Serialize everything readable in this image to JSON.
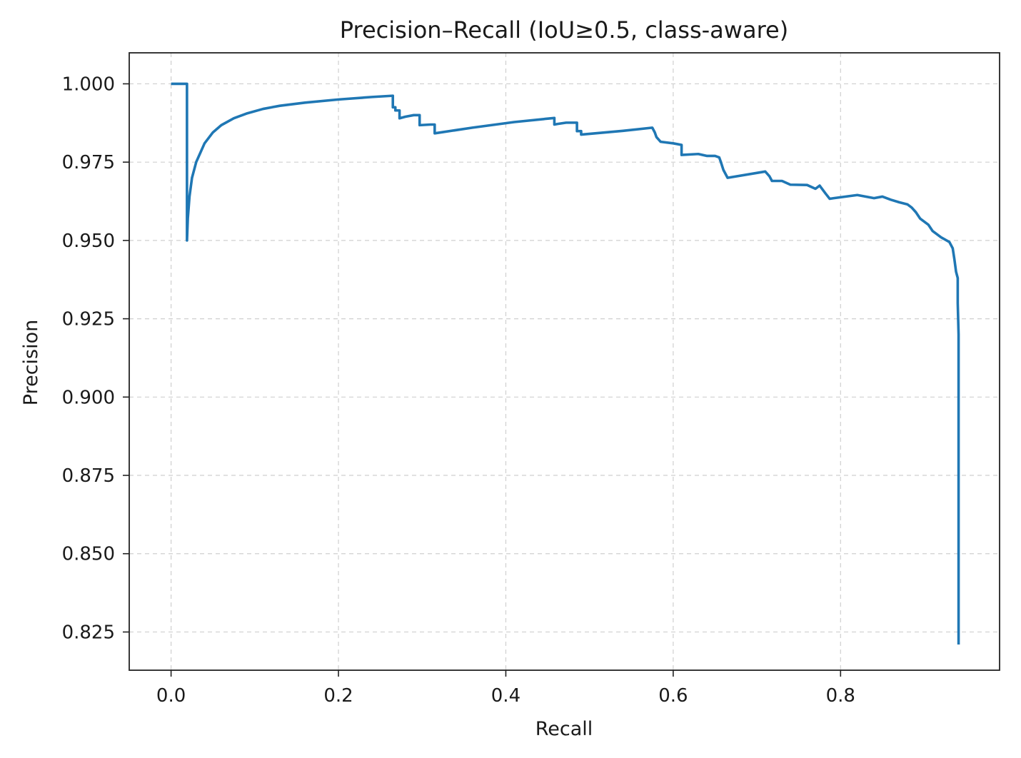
{
  "chart_data": {
    "type": "line",
    "title": "Precision–Recall (IoU≥0.5, class-aware)",
    "xlabel": "Recall",
    "ylabel": "Precision",
    "xlim": [
      -0.05,
      0.99
    ],
    "ylim": [
      0.8128,
      1.0099
    ],
    "xticks": [
      0.0,
      0.2,
      0.4,
      0.6,
      0.8
    ],
    "xtick_labels": [
      "0.0",
      "0.2",
      "0.4",
      "0.6",
      "0.8"
    ],
    "yticks": [
      0.825,
      0.85,
      0.875,
      0.9,
      0.925,
      0.95,
      0.975,
      1.0
    ],
    "ytick_labels": [
      "0.825",
      "0.850",
      "0.875",
      "0.900",
      "0.925",
      "0.950",
      "0.975",
      "1.000"
    ],
    "grid": true,
    "line_color": "#1f77b4",
    "series": [
      {
        "x": [
          0.0,
          0.019,
          0.019,
          0.02,
          0.022,
          0.025,
          0.03,
          0.04,
          0.05,
          0.06,
          0.075,
          0.09,
          0.11,
          0.13,
          0.16,
          0.2,
          0.24,
          0.265,
          0.265,
          0.268,
          0.268,
          0.273,
          0.273,
          0.28,
          0.29,
          0.297,
          0.297,
          0.31,
          0.315,
          0.315,
          0.36,
          0.41,
          0.458,
          0.458,
          0.462,
          0.472,
          0.485,
          0.485,
          0.49,
          0.49,
          0.54,
          0.575,
          0.578,
          0.58,
          0.585,
          0.6,
          0.61,
          0.61,
          0.63,
          0.64,
          0.65,
          0.655,
          0.657,
          0.66,
          0.665,
          0.71,
          0.715,
          0.718,
          0.73,
          0.74,
          0.76,
          0.77,
          0.775,
          0.782,
          0.787,
          0.792,
          0.82,
          0.84,
          0.85,
          0.86,
          0.87,
          0.88,
          0.885,
          0.89,
          0.895,
          0.9,
          0.905,
          0.91,
          0.915,
          0.92,
          0.93,
          0.934,
          0.936,
          0.937,
          0.938,
          0.94,
          0.94,
          0.941,
          0.941
        ],
        "y": [
          1.0,
          1.0,
          0.95,
          0.957,
          0.964,
          0.97,
          0.975,
          0.981,
          0.9845,
          0.9868,
          0.989,
          0.9905,
          0.992,
          0.993,
          0.994,
          0.995,
          0.9958,
          0.9962,
          0.9925,
          0.9925,
          0.9915,
          0.9915,
          0.989,
          0.9895,
          0.99,
          0.99,
          0.9868,
          0.987,
          0.987,
          0.9842,
          0.986,
          0.9878,
          0.9891,
          0.987,
          0.9872,
          0.9876,
          0.9876,
          0.9849,
          0.9849,
          0.9838,
          0.985,
          0.986,
          0.9845,
          0.983,
          0.9815,
          0.981,
          0.9805,
          0.9773,
          0.9776,
          0.977,
          0.977,
          0.9765,
          0.975,
          0.9725,
          0.97,
          0.972,
          0.9705,
          0.969,
          0.969,
          0.9678,
          0.9677,
          0.9665,
          0.9675,
          0.965,
          0.9633,
          0.9635,
          0.9645,
          0.9635,
          0.964,
          0.963,
          0.9622,
          0.9615,
          0.9605,
          0.959,
          0.957,
          0.956,
          0.955,
          0.953,
          0.952,
          0.951,
          0.9495,
          0.9475,
          0.944,
          0.942,
          0.94,
          0.938,
          0.93,
          0.92,
          0.821
        ]
      }
    ]
  }
}
